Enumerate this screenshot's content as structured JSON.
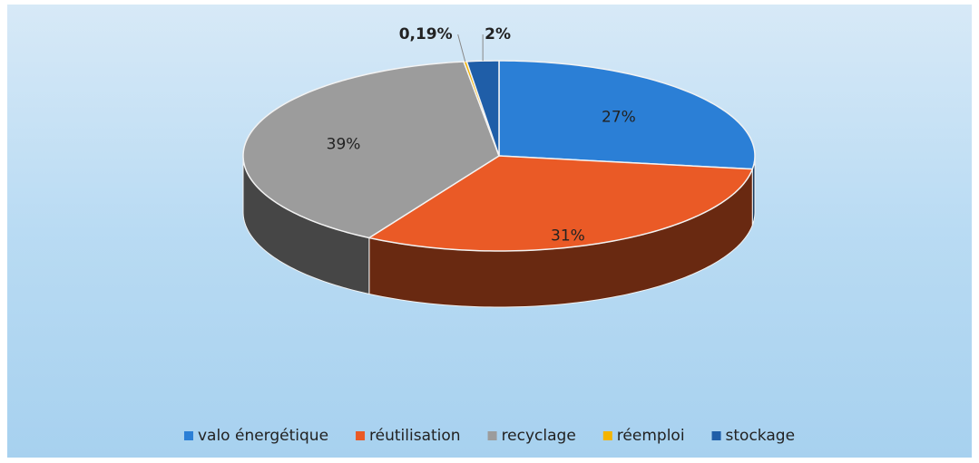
{
  "chart_data": {
    "type": "pie",
    "categories": [
      "valo énergétique",
      "réutilisation",
      "recyclage",
      "réemploi",
      "stockage"
    ],
    "values": [
      27,
      31,
      39,
      0.19,
      2
    ],
    "value_labels": [
      "27%",
      "31%",
      "39%",
      "0,19%",
      "2%"
    ],
    "colors": [
      "#2b7fd6",
      "#ea5a26",
      "#9c9c9c",
      "#f4b400",
      "#1f5ea8"
    ],
    "legend": "bottom"
  }
}
